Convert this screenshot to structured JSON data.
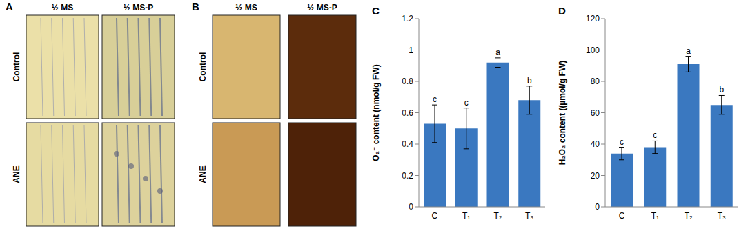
{
  "image_panels": [
    {
      "label": "A",
      "columns": [
        "½ MS",
        "½ MS-P"
      ],
      "rows": [
        "Control",
        "ANE"
      ]
    },
    {
      "label": "B",
      "columns": [
        "½ MS",
        "½ MS-P"
      ],
      "rows": [
        "Control",
        "ANE"
      ]
    }
  ],
  "chart_data": [
    {
      "title": "C",
      "type": "bar",
      "categories": [
        "C",
        "T₁",
        "T₂",
        "T₃"
      ],
      "values": [
        0.53,
        0.5,
        0.92,
        0.68
      ],
      "errors": [
        0.12,
        0.13,
        0.03,
        0.09
      ],
      "significance": [
        "c",
        "c",
        "a",
        "b"
      ],
      "y_label": "O₂⁻ content (nmol/g FW)",
      "ylim": [
        0,
        1.2
      ],
      "yticks": [
        0,
        0.2,
        0.4,
        0.6,
        0.8,
        1,
        1.2
      ],
      "color": "#3a78c0",
      "grid": false
    },
    {
      "title": "D",
      "type": "bar",
      "categories": [
        "C",
        "T₁",
        "T₂",
        "T₃"
      ],
      "values": [
        34,
        38,
        91,
        65
      ],
      "errors": [
        4,
        4,
        5,
        6
      ],
      "significance": [
        "c",
        "c",
        "a",
        "b"
      ],
      "y_label": "H₂O₂ content ((µmol/g FW)",
      "ylim": [
        0,
        120
      ],
      "yticks": [
        0,
        20,
        40,
        60,
        80,
        100,
        120
      ],
      "color": "#3a78c0",
      "grid": false
    }
  ]
}
